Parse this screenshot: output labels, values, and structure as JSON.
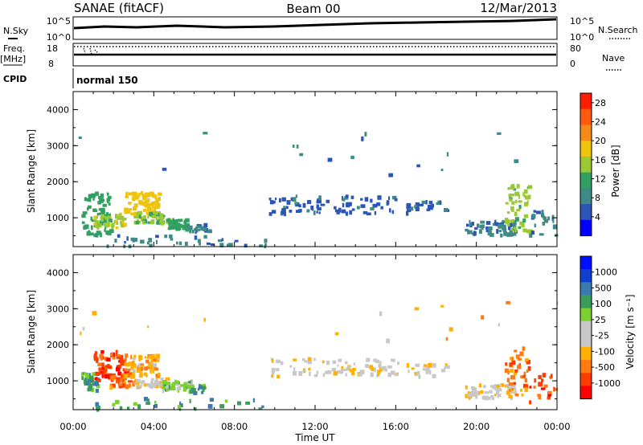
{
  "header": {
    "station": "SANAE (fitACF)",
    "beam": "Beam 00",
    "date": "12/Mar/2013"
  },
  "top_panels": {
    "nsky_label": "N.Sky",
    "nsky_ticks": [
      "10^5",
      "10^0"
    ],
    "nsearch_label": "N.Search",
    "nsearch_ticks": [
      "10^5",
      "10^0"
    ],
    "freq_label": "Freq.",
    "freq_unit": "[MHz]",
    "freq_ticks": [
      "18",
      "8"
    ],
    "nave_label": "Nave",
    "nave_ticks": [
      "80",
      "0"
    ],
    "cpid_label": "CPID",
    "cpid_value": "normal 150"
  },
  "colors": {
    "power": [
      "#0000ff",
      "#2b56b8",
      "#3e8a86",
      "#31a060",
      "#9bc934",
      "#f0c40a",
      "#f58a18",
      "#ff5a10",
      "#ff1e00"
    ],
    "velocity": [
      "#ff0000",
      "#ff3c00",
      "#ff7a10",
      "#ffb000",
      "#c8c8c8",
      "#c8c8c8",
      "#7cd030",
      "#3a9e5a",
      "#3a7ab0",
      "#1040d0",
      "#0010ff"
    ]
  },
  "chart_data": [
    {
      "type": "heatmap",
      "name": "power",
      "xlabel": "",
      "ylabel": "Slant Range [km]",
      "y_ticks": [
        "1000",
        "2000",
        "3000",
        "4000"
      ],
      "ylim": [
        200,
        4500
      ],
      "colorbar_label": "Power [dB]",
      "colorbar_ticks": [
        "4",
        "8",
        "12",
        "16",
        "20",
        "24",
        "28"
      ],
      "clim": [
        0,
        30
      ],
      "blobs": [
        {
          "t": [
            0.4,
            1.8
          ],
          "r": [
            500,
            1700
          ],
          "v": 12,
          "n": 70
        },
        {
          "t": [
            1.0,
            2.5
          ],
          "r": [
            700,
            1100
          ],
          "v": 16,
          "n": 40
        },
        {
          "t": [
            2.5,
            4.2
          ],
          "r": [
            1100,
            1700
          ],
          "v": 18,
          "n": 70
        },
        {
          "t": [
            3.0,
            4.7
          ],
          "r": [
            850,
            1150
          ],
          "v": 14,
          "n": 50
        },
        {
          "t": [
            4.6,
            5.6
          ],
          "r": [
            650,
            950
          ],
          "v": 12,
          "n": 40
        },
        {
          "t": [
            5.6,
            6.7
          ],
          "r": [
            600,
            800
          ],
          "v": 6,
          "n": 25
        },
        {
          "t": [
            9.7,
            16.1
          ],
          "r": [
            1100,
            1600
          ],
          "v": 5,
          "n": 80
        },
        {
          "t": [
            16.5,
            18.6
          ],
          "r": [
            1100,
            1450
          ],
          "v": 5,
          "n": 25
        },
        {
          "t": [
            19.4,
            21.9
          ],
          "r": [
            500,
            900
          ],
          "v": 6,
          "n": 60
        },
        {
          "t": [
            21.4,
            22.6
          ],
          "r": [
            600,
            1900
          ],
          "v": 14,
          "n": 50
        },
        {
          "t": [
            22.6,
            23.9
          ],
          "r": [
            400,
            1200
          ],
          "v": 6,
          "n": 20
        },
        {
          "t": [
            1.0,
            9.5
          ],
          "r": [
            200,
            500
          ],
          "v": 6,
          "n": 40
        },
        {
          "t": [
            0.0,
            24.0
          ],
          "r": [
            2100,
            3400
          ],
          "v": 6,
          "n": 16
        }
      ]
    },
    {
      "type": "heatmap",
      "name": "velocity",
      "xlabel": "Time UT",
      "ylabel": "Slant Range [km]",
      "x_ticks": [
        "00:00",
        "04:00",
        "08:00",
        "12:00",
        "16:00",
        "20:00",
        "00:00"
      ],
      "xlim": [
        0,
        24
      ],
      "y_ticks": [
        "1000",
        "2000",
        "3000",
        "4000"
      ],
      "ylim": [
        200,
        4500
      ],
      "colorbar_label": "Velocity [m s⁻¹]",
      "colorbar_ticks": [
        "1000",
        "500",
        "100",
        "25",
        "-25",
        "-100",
        "-500",
        "-1000"
      ],
      "blobs": [
        {
          "t": [
            0.4,
            1.2
          ],
          "r": [
            700,
            1200
          ],
          "v": 7,
          "n": 40
        },
        {
          "t": [
            1.0,
            2.6
          ],
          "r": [
            1000,
            1800
          ],
          "v": 1,
          "n": 70
        },
        {
          "t": [
            1.8,
            3.0
          ],
          "r": [
            800,
            1200
          ],
          "v": 2,
          "n": 40
        },
        {
          "t": [
            2.5,
            4.2
          ],
          "r": [
            1100,
            1700
          ],
          "v": 3,
          "n": 70
        },
        {
          "t": [
            3.0,
            4.6
          ],
          "r": [
            800,
            1050
          ],
          "v": 4,
          "n": 50
        },
        {
          "t": [
            4.4,
            5.8
          ],
          "r": [
            700,
            1000
          ],
          "v": 6,
          "n": 40
        },
        {
          "t": [
            5.7,
            6.7
          ],
          "r": [
            650,
            850
          ],
          "v": 7,
          "n": 20
        },
        {
          "t": [
            9.7,
            16.1
          ],
          "r": [
            1100,
            1600
          ],
          "v": 4,
          "n": 80
        },
        {
          "t": [
            16.5,
            18.6
          ],
          "r": [
            1100,
            1450
          ],
          "v": 4,
          "n": 25
        },
        {
          "t": [
            19.4,
            21.9
          ],
          "r": [
            500,
            900
          ],
          "v": 4,
          "n": 60
        },
        {
          "t": [
            21.4,
            22.6
          ],
          "r": [
            600,
            1900
          ],
          "v": 2,
          "n": 40
        },
        {
          "t": [
            22.6,
            23.9
          ],
          "r": [
            400,
            1200
          ],
          "v": 1,
          "n": 20
        },
        {
          "t": [
            1.0,
            9.5
          ],
          "r": [
            200,
            500
          ],
          "v": 7,
          "n": 30
        },
        {
          "t": [
            0.0,
            24.0
          ],
          "r": [
            2100,
            3400
          ],
          "v": 3,
          "n": 16
        }
      ]
    }
  ]
}
